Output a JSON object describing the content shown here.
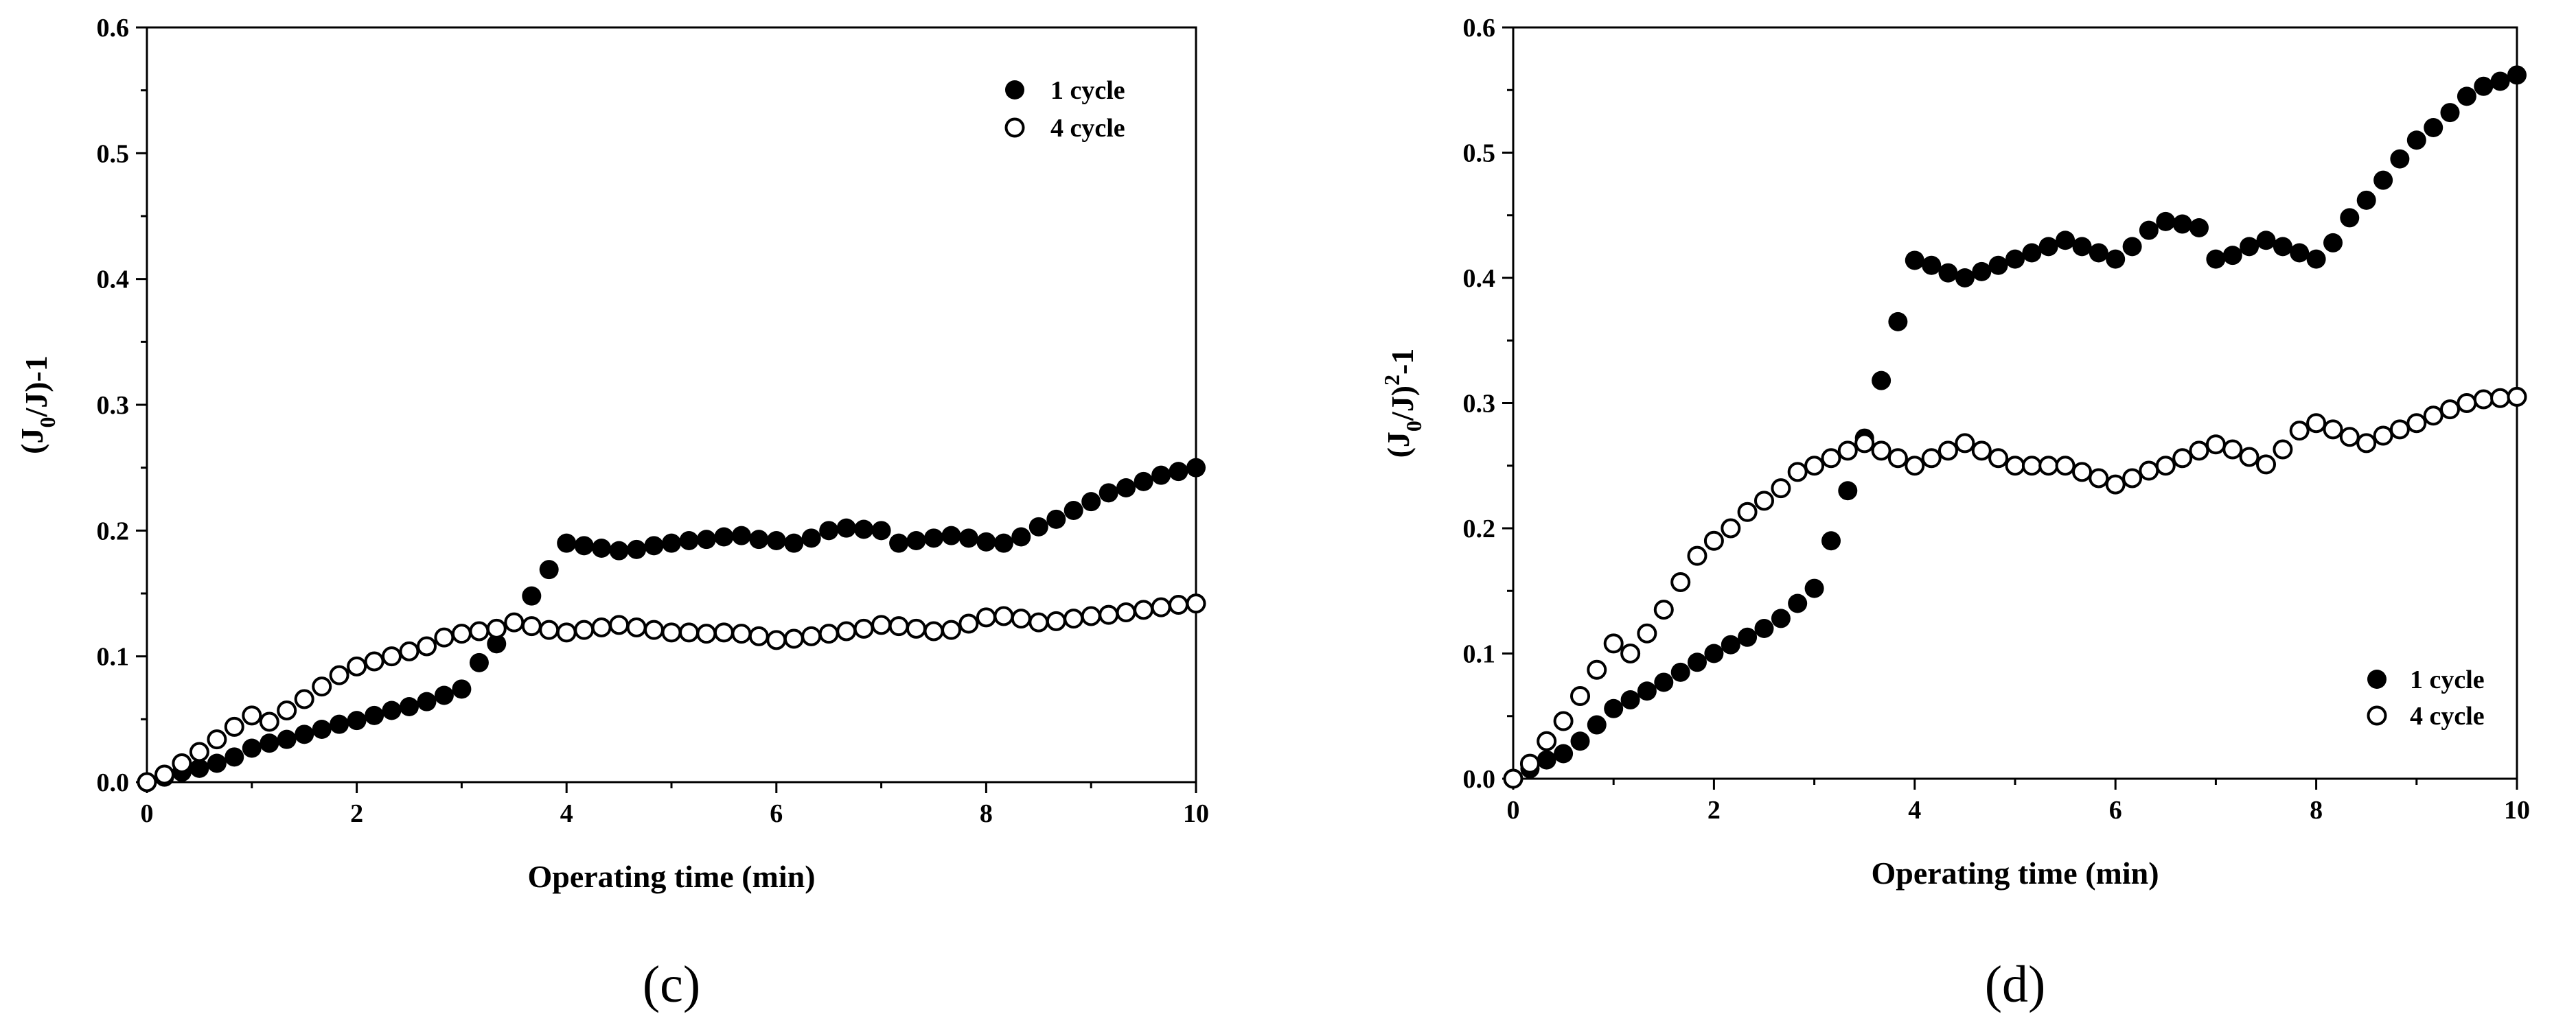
{
  "chart_data": [
    {
      "type": "scatter",
      "panel_label": "(c)",
      "title": "",
      "xlabel": "Operating time (min)",
      "ylabel": {
        "prefix": "(J",
        "sub": "0",
        "suffix": "/J)-1"
      },
      "xlim": [
        0,
        10
      ],
      "ylim": [
        0,
        0.6
      ],
      "xticks": [
        0,
        2,
        4,
        6,
        8,
        10
      ],
      "yticks": [
        "0.0",
        "0.1",
        "0.2",
        "0.3",
        "0.4",
        "0.5",
        "0.6"
      ],
      "legend_position": "top-right",
      "grid": false,
      "series": [
        {
          "name": "1 cycle",
          "marker": "filled-circle",
          "x": [
            0,
            0.167,
            0.333,
            0.5,
            0.667,
            0.833,
            1.0,
            1.167,
            1.333,
            1.5,
            1.667,
            1.833,
            2.0,
            2.167,
            2.333,
            2.5,
            2.667,
            2.833,
            3.0,
            3.167,
            3.333,
            3.5,
            3.667,
            3.833,
            4.0,
            4.167,
            4.333,
            4.5,
            4.667,
            4.833,
            5.0,
            5.167,
            5.333,
            5.5,
            5.667,
            5.833,
            6.0,
            6.167,
            6.333,
            6.5,
            6.667,
            6.833,
            7.0,
            7.167,
            7.333,
            7.5,
            7.667,
            7.833,
            8.0,
            8.167,
            8.333,
            8.5,
            8.667,
            8.833,
            9.0,
            9.167,
            9.333,
            9.5,
            9.667,
            9.833,
            10.0
          ],
          "y": [
            0,
            0.004,
            0.008,
            0.011,
            0.015,
            0.02,
            0.027,
            0.031,
            0.034,
            0.038,
            0.042,
            0.046,
            0.049,
            0.053,
            0.057,
            0.06,
            0.064,
            0.069,
            0.074,
            0.095,
            0.11,
            0.127,
            0.148,
            0.169,
            0.19,
            0.188,
            0.186,
            0.184,
            0.185,
            0.188,
            0.19,
            0.192,
            0.193,
            0.195,
            0.196,
            0.193,
            0.192,
            0.19,
            0.194,
            0.2,
            0.202,
            0.201,
            0.2,
            0.19,
            0.192,
            0.194,
            0.196,
            0.194,
            0.191,
            0.19,
            0.195,
            0.203,
            0.209,
            0.216,
            0.223,
            0.23,
            0.234,
            0.239,
            0.244,
            0.247,
            0.25
          ]
        },
        {
          "name": "4 cycle",
          "marker": "open-circle",
          "x": [
            0,
            0.167,
            0.333,
            0.5,
            0.667,
            0.833,
            1.0,
            1.167,
            1.333,
            1.5,
            1.667,
            1.833,
            2.0,
            2.167,
            2.333,
            2.5,
            2.667,
            2.833,
            3.0,
            3.167,
            3.333,
            3.5,
            3.667,
            3.833,
            4.0,
            4.167,
            4.333,
            4.5,
            4.667,
            4.833,
            5.0,
            5.167,
            5.333,
            5.5,
            5.667,
            5.833,
            6.0,
            6.167,
            6.333,
            6.5,
            6.667,
            6.833,
            7.0,
            7.167,
            7.333,
            7.5,
            7.667,
            7.833,
            8.0,
            8.167,
            8.333,
            8.5,
            8.667,
            8.833,
            9.0,
            9.167,
            9.333,
            9.5,
            9.667,
            9.833,
            10.0
          ],
          "y": [
            0,
            0.006,
            0.015,
            0.024,
            0.034,
            0.044,
            0.053,
            0.048,
            0.057,
            0.066,
            0.076,
            0.085,
            0.092,
            0.096,
            0.1,
            0.104,
            0.108,
            0.115,
            0.118,
            0.12,
            0.122,
            0.127,
            0.124,
            0.121,
            0.119,
            0.121,
            0.123,
            0.125,
            0.123,
            0.121,
            0.119,
            0.119,
            0.118,
            0.119,
            0.118,
            0.116,
            0.113,
            0.114,
            0.116,
            0.118,
            0.12,
            0.122,
            0.125,
            0.124,
            0.122,
            0.12,
            0.121,
            0.126,
            0.131,
            0.132,
            0.13,
            0.127,
            0.128,
            0.13,
            0.132,
            0.133,
            0.135,
            0.137,
            0.139,
            0.141,
            0.142
          ]
        }
      ]
    },
    {
      "type": "scatter",
      "panel_label": "(d)",
      "title": "",
      "xlabel": "Operating time (min)",
      "ylabel": {
        "prefix": "(J",
        "sub": "0",
        "mid": "/J)",
        "sup": "2",
        "suffix": "-1"
      },
      "xlim": [
        0,
        10
      ],
      "ylim": [
        0,
        0.6
      ],
      "xticks": [
        0,
        2,
        4,
        6,
        8,
        10
      ],
      "yticks": [
        "0.0",
        "0.1",
        "0.2",
        "0.3",
        "0.4",
        "0.5",
        "0.6"
      ],
      "legend_position": "bottom-right",
      "grid": false,
      "series": [
        {
          "name": "1 cycle",
          "marker": "filled-circle",
          "x": [
            0,
            0.167,
            0.333,
            0.5,
            0.667,
            0.833,
            1.0,
            1.167,
            1.333,
            1.5,
            1.667,
            1.833,
            2.0,
            2.167,
            2.333,
            2.5,
            2.667,
            2.833,
            3.0,
            3.167,
            3.333,
            3.5,
            3.667,
            3.833,
            4.0,
            4.167,
            4.333,
            4.5,
            4.667,
            4.833,
            5.0,
            5.167,
            5.333,
            5.5,
            5.667,
            5.833,
            6.0,
            6.167,
            6.333,
            6.5,
            6.667,
            6.833,
            7.0,
            7.167,
            7.333,
            7.5,
            7.667,
            7.833,
            8.0,
            8.167,
            8.333,
            8.5,
            8.667,
            8.833,
            9.0,
            9.167,
            9.333,
            9.5,
            9.667,
            9.833,
            10.0
          ],
          "y": [
            0,
            0.008,
            0.015,
            0.02,
            0.03,
            0.043,
            0.056,
            0.063,
            0.07,
            0.077,
            0.085,
            0.093,
            0.1,
            0.107,
            0.113,
            0.12,
            0.128,
            0.14,
            0.152,
            0.19,
            0.23,
            0.272,
            0.318,
            0.365,
            0.414,
            0.41,
            0.404,
            0.4,
            0.405,
            0.41,
            0.415,
            0.42,
            0.425,
            0.43,
            0.425,
            0.42,
            0.415,
            0.425,
            0.438,
            0.445,
            0.443,
            0.44,
            0.415,
            0.418,
            0.425,
            0.43,
            0.425,
            0.42,
            0.415,
            0.428,
            0.448,
            0.462,
            0.478,
            0.495,
            0.51,
            0.52,
            0.532,
            0.545,
            0.553,
            0.557,
            0.562
          ]
        },
        {
          "name": "4 cycle",
          "marker": "open-circle",
          "x": [
            0,
            0.167,
            0.333,
            0.5,
            0.667,
            0.833,
            1.0,
            1.167,
            1.333,
            1.5,
            1.667,
            1.833,
            2.0,
            2.167,
            2.333,
            2.5,
            2.667,
            2.833,
            3.0,
            3.167,
            3.333,
            3.5,
            3.667,
            3.833,
            4.0,
            4.167,
            4.333,
            4.5,
            4.667,
            4.833,
            5.0,
            5.167,
            5.333,
            5.5,
            5.667,
            5.833,
            6.0,
            6.167,
            6.333,
            6.5,
            6.667,
            6.833,
            7.0,
            7.167,
            7.333,
            7.5,
            7.667,
            7.833,
            8.0,
            8.167,
            8.333,
            8.5,
            8.667,
            8.833,
            9.0,
            9.167,
            9.333,
            9.5,
            9.667,
            9.833,
            10.0
          ],
          "y": [
            0,
            0.012,
            0.03,
            0.046,
            0.066,
            0.087,
            0.108,
            0.1,
            0.116,
            0.135,
            0.157,
            0.178,
            0.19,
            0.2,
            0.213,
            0.222,
            0.232,
            0.245,
            0.25,
            0.256,
            0.262,
            0.268,
            0.262,
            0.256,
            0.25,
            0.256,
            0.262,
            0.268,
            0.262,
            0.256,
            0.25,
            0.25,
            0.25,
            0.25,
            0.245,
            0.24,
            0.235,
            0.24,
            0.246,
            0.25,
            0.256,
            0.262,
            0.267,
            0.263,
            0.257,
            0.251,
            0.263,
            0.278,
            0.284,
            0.279,
            0.273,
            0.268,
            0.274,
            0.279,
            0.284,
            0.29,
            0.295,
            0.3,
            0.303,
            0.304,
            0.305
          ]
        }
      ]
    }
  ]
}
